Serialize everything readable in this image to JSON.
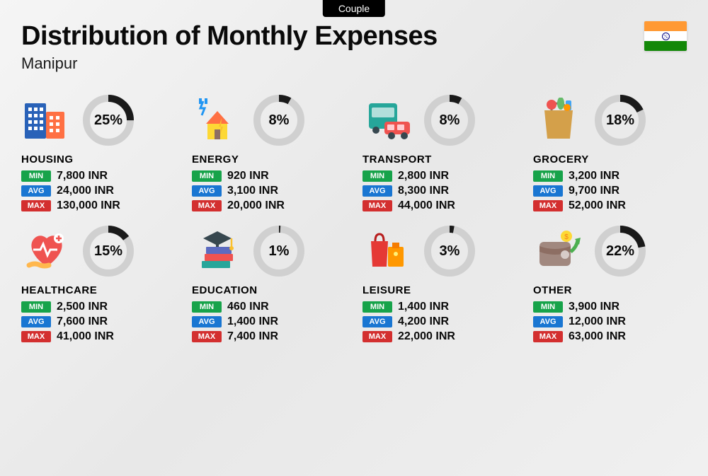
{
  "tag": "Couple",
  "title": "Distribution of Monthly Expenses",
  "subtitle": "Manipur",
  "currency": "INR",
  "colors": {
    "ring_bg": "#d0d0d0",
    "ring_fg": "#1a1a1a",
    "badge_min": "#17a34a",
    "badge_avg": "#1976d2",
    "badge_max": "#d32f2f",
    "text": "#0a0a0a"
  },
  "badgeLabels": {
    "min": "MIN",
    "avg": "AVG",
    "max": "MAX"
  },
  "flag": {
    "saffron": "#ff9933",
    "white": "#ffffff",
    "green": "#138808",
    "chakra": "#000080"
  },
  "categories": [
    {
      "key": "housing",
      "name": "HOUSING",
      "percent": 25,
      "min": "7,800 INR",
      "avg": "24,000 INR",
      "max": "130,000 INR"
    },
    {
      "key": "energy",
      "name": "ENERGY",
      "percent": 8,
      "min": "920 INR",
      "avg": "3,100 INR",
      "max": "20,000 INR"
    },
    {
      "key": "transport",
      "name": "TRANSPORT",
      "percent": 8,
      "min": "2,800 INR",
      "avg": "8,300 INR",
      "max": "44,000 INR"
    },
    {
      "key": "grocery",
      "name": "GROCERY",
      "percent": 18,
      "min": "3,200 INR",
      "avg": "9,700 INR",
      "max": "52,000 INR"
    },
    {
      "key": "healthcare",
      "name": "HEALTHCARE",
      "percent": 15,
      "min": "2,500 INR",
      "avg": "7,600 INR",
      "max": "41,000 INR"
    },
    {
      "key": "education",
      "name": "EDUCATION",
      "percent": 1,
      "min": "460 INR",
      "avg": "1,400 INR",
      "max": "7,400 INR"
    },
    {
      "key": "leisure",
      "name": "LEISURE",
      "percent": 3,
      "min": "1,400 INR",
      "avg": "4,200 INR",
      "max": "22,000 INR"
    },
    {
      "key": "other",
      "name": "OTHER",
      "percent": 22,
      "min": "3,900 INR",
      "avg": "12,000 INR",
      "max": "63,000 INR"
    }
  ]
}
